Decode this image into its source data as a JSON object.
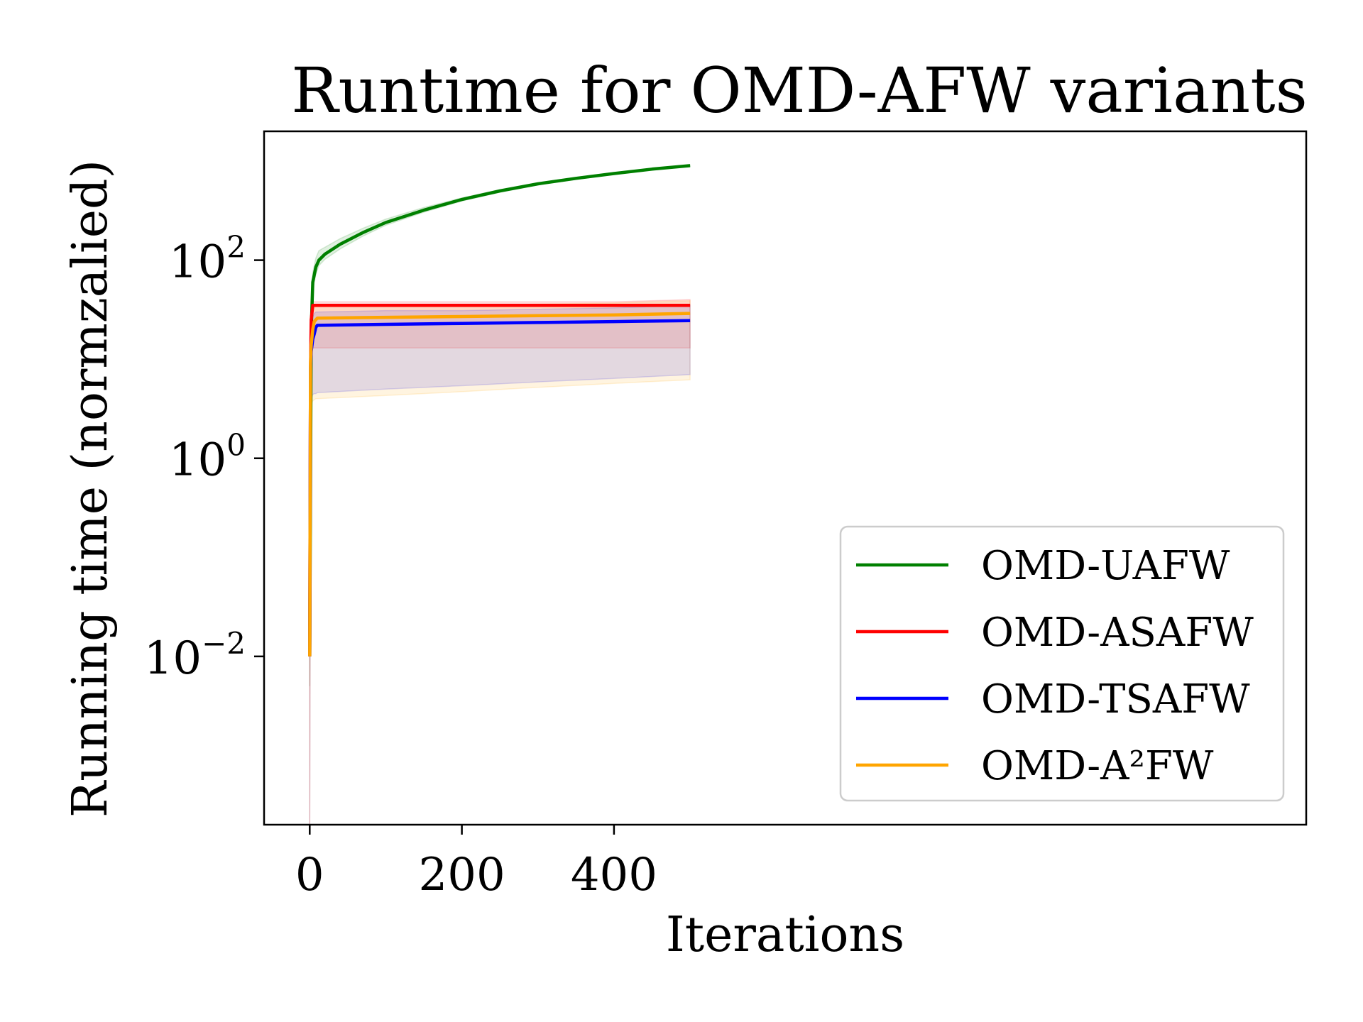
{
  "chart_data": {
    "type": "line",
    "title": "Runtime for OMD-AFW variants",
    "xlabel": "Iterations",
    "ylabel": "Running time (normzalied)",
    "yscale": "log",
    "xlim": [
      -60,
      1310
    ],
    "ylim": [
      0.0002,
      2000
    ],
    "xticks": [
      {
        "value": 0,
        "label": "0"
      },
      {
        "value": 200,
        "label": "200"
      },
      {
        "value": 400,
        "label": "400"
      }
    ],
    "yticks": [
      {
        "value": 0.01,
        "base": "10",
        "exp": "−2"
      },
      {
        "value": 1,
        "base": "10",
        "exp": "0"
      },
      {
        "value": 100,
        "base": "10",
        "exp": "2"
      }
    ],
    "grid": false,
    "legend": {
      "placement": "lower-right"
    },
    "series": [
      {
        "name": "OMD-UAFW",
        "color": "#008000",
        "x": [
          0,
          2,
          4,
          8,
          12,
          20,
          40,
          70,
          100,
          150,
          200,
          250,
          300,
          350,
          400,
          450,
          500
        ],
        "y": [
          0.01,
          20,
          60,
          85,
          100,
          115,
          145,
          190,
          240,
          320,
          410,
          500,
          590,
          670,
          750,
          830,
          900
        ],
        "band_low": [
          0.005,
          15,
          50,
          72,
          88,
          102,
          130,
          175,
          225,
          305,
          395,
          485,
          575,
          655,
          735,
          815,
          885
        ],
        "band_high": [
          0.015,
          25,
          75,
          105,
          125,
          135,
          165,
          210,
          260,
          340,
          425,
          515,
          605,
          685,
          765,
          845,
          915
        ]
      },
      {
        "name": "OMD-ASAFW",
        "color": "#ff0000",
        "x": [
          0,
          1,
          2,
          4,
          6,
          100,
          200,
          300,
          400,
          500
        ],
        "y": [
          0.01,
          8,
          25,
          35,
          35,
          35,
          35,
          35,
          35,
          35
        ],
        "band_low": [
          0.0001,
          5,
          12,
          13,
          13,
          13,
          13,
          13,
          13,
          13
        ],
        "band_high": [
          0.02,
          10,
          35,
          38,
          38,
          38,
          38,
          38,
          38,
          40
        ]
      },
      {
        "name": "OMD-TSAFW",
        "color": "#0000ff",
        "x": [
          0,
          1,
          2,
          4,
          6,
          8,
          10,
          100,
          200,
          300,
          400,
          500
        ],
        "y": [
          0.01,
          8,
          12,
          16,
          18,
          21,
          22,
          22.5,
          23,
          23.5,
          24,
          24.5
        ],
        "band_low": [
          0.0001,
          2,
          4,
          4.4,
          4.5,
          4.5,
          4.6,
          5,
          5.4,
          5.9,
          6.4,
          7
        ],
        "band_high": [
          0.02,
          15,
          22,
          27,
          29,
          30,
          30,
          31,
          31,
          32,
          33,
          35
        ]
      },
      {
        "name": "OMD-A²FW",
        "color": "#ffa500",
        "x": [
          0,
          1,
          2,
          4,
          6,
          8,
          10,
          100,
          200,
          300,
          400,
          500
        ],
        "y": [
          0.01,
          9,
          14,
          20,
          24,
          25,
          26,
          26.5,
          27,
          27.5,
          28,
          29
        ],
        "band_low": [
          0.0001,
          2,
          3.5,
          3.8,
          3.9,
          4,
          4,
          4.3,
          4.7,
          5.2,
          5.7,
          6.2
        ],
        "band_high": [
          0.02,
          16,
          24,
          30,
          33,
          34,
          34,
          35,
          35,
          36,
          37,
          39
        ]
      }
    ]
  }
}
